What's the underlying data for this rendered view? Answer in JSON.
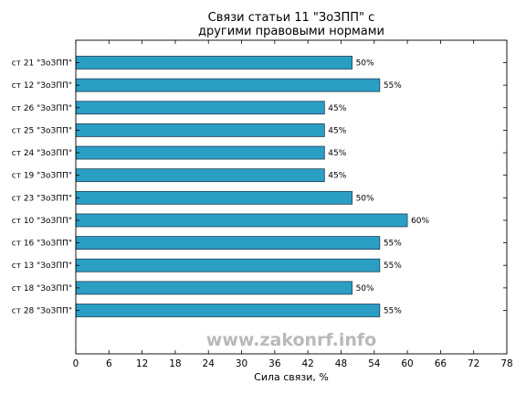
{
  "chart_data": {
    "type": "bar",
    "orientation": "horizontal",
    "title": "Связи статьи 11 \"ЗоЗПП\" с другими правовыми нормами",
    "title_lines": [
      "Связи статьи 11 \"ЗоЗПП\" с",
      "другими правовыми нормами"
    ],
    "xlabel": "Сила связи, %",
    "ylabel": "",
    "xlim": [
      0,
      78
    ],
    "xticks": [
      0,
      6,
      12,
      18,
      24,
      30,
      36,
      42,
      48,
      54,
      60,
      66,
      72,
      78
    ],
    "categories": [
      "ст 21 \"ЗоЗПП\"",
      "ст 12 \"ЗоЗПП\"",
      "ст 26 \"ЗоЗПП\"",
      "ст 25 \"ЗоЗПП\"",
      "ст 24 \"ЗоЗПП\"",
      "ст 19 \"ЗоЗПП\"",
      "ст 23 \"ЗоЗПП\"",
      "ст 10 \"ЗоЗПП\"",
      "ст 16 \"ЗоЗПП\"",
      "ст 13 \"ЗоЗПП\"",
      "ст 18 \"ЗоЗПП\"",
      "ст 28 \"ЗоЗПП\""
    ],
    "values": [
      50,
      55,
      45,
      45,
      45,
      45,
      50,
      60,
      55,
      55,
      50,
      55
    ],
    "value_labels": [
      "50%",
      "55%",
      "45%",
      "45%",
      "45%",
      "45%",
      "50%",
      "60%",
      "55%",
      "55%",
      "50%",
      "55%"
    ],
    "bar_color": "#2b9ec4",
    "bar_edge_color": "#1f3f55",
    "grid": false,
    "legend": "none",
    "watermark": "www.zakonrf.info"
  }
}
